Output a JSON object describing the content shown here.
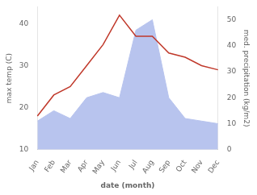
{
  "chart_data": {
    "type": "line",
    "xlabel": "date (month)",
    "ylabel": "max temp (C)",
    "y2label": "med. precipitation (kg/m2)",
    "categories": [
      "Jan",
      "Feb",
      "Mar",
      "Apr",
      "May",
      "Jun",
      "Jul",
      "Aug",
      "Sep",
      "Oct",
      "Nov",
      "Dec"
    ],
    "series": [
      {
        "type": "line",
        "color": "#c0392b",
        "values": [
          18,
          23,
          25,
          30,
          35,
          42,
          37,
          37,
          33,
          32,
          30,
          29
        ]
      },
      {
        "type": "area",
        "color": "#b8c4ee",
        "axis": "y2",
        "values": [
          11,
          15,
          12,
          20,
          22,
          20,
          46,
          50,
          20,
          12,
          11,
          10
        ]
      }
    ],
    "ylim": [
      10,
      44
    ],
    "yticks": [
      10,
      20,
      30,
      40
    ],
    "y2lim": [
      0,
      55
    ],
    "y2ticks": [
      0,
      10,
      20,
      30,
      40,
      50
    ],
    "grid": false
  }
}
